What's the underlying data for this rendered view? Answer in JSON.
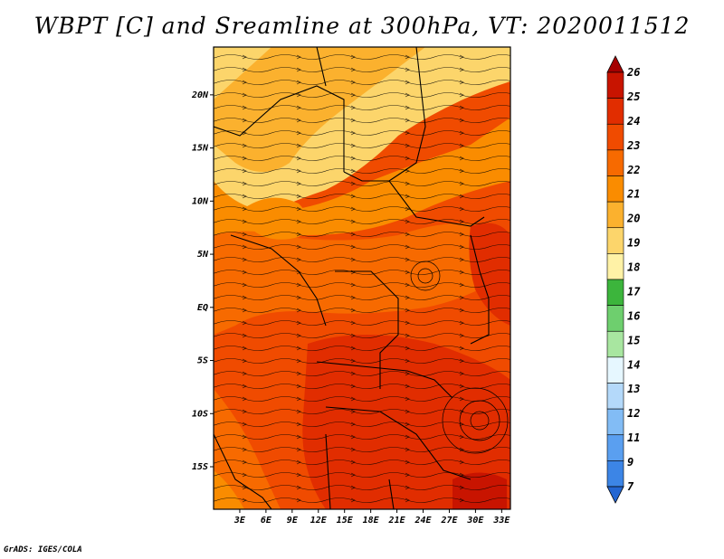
{
  "title": "WBPT [C] and Sreamline at 300hPa, VT: 2020011512",
  "credit": "GrADS: IGES/COLA",
  "map": {
    "lat_labels": [
      "20N",
      "15N",
      "10N",
      "5N",
      "EQ",
      "5S",
      "10S",
      "15S"
    ],
    "lat_values": [
      20,
      15,
      10,
      5,
      0,
      -5,
      -10,
      -15
    ],
    "lon_labels": [
      "3E",
      "6E",
      "9E",
      "12E",
      "15E",
      "18E",
      "21E",
      "24E",
      "27E",
      "30E",
      "33E"
    ],
    "lon_values": [
      3,
      6,
      9,
      12,
      15,
      18,
      21,
      24,
      27,
      30,
      33
    ],
    "lon_range": [
      0,
      34
    ],
    "lat_range": [
      -19,
      24.5
    ]
  },
  "colorbar": {
    "labels": [
      "26",
      "25",
      "24",
      "23",
      "22",
      "21",
      "20",
      "19",
      "18",
      "17",
      "16",
      "15",
      "14",
      "13",
      "12",
      "11",
      "9",
      "7"
    ],
    "colors": [
      "#a50000",
      "#c81400",
      "#e12d00",
      "#f04b00",
      "#f76a00",
      "#fa8c00",
      "#fbb12e",
      "#fcd56b",
      "#fff2a6",
      "#3cb53c",
      "#6ecf6e",
      "#a8e6a0",
      "#e6f7ff",
      "#b4d9fa",
      "#82bcf5",
      "#5a9ff0",
      "#3c85e6",
      "#2366d2"
    ]
  }
}
